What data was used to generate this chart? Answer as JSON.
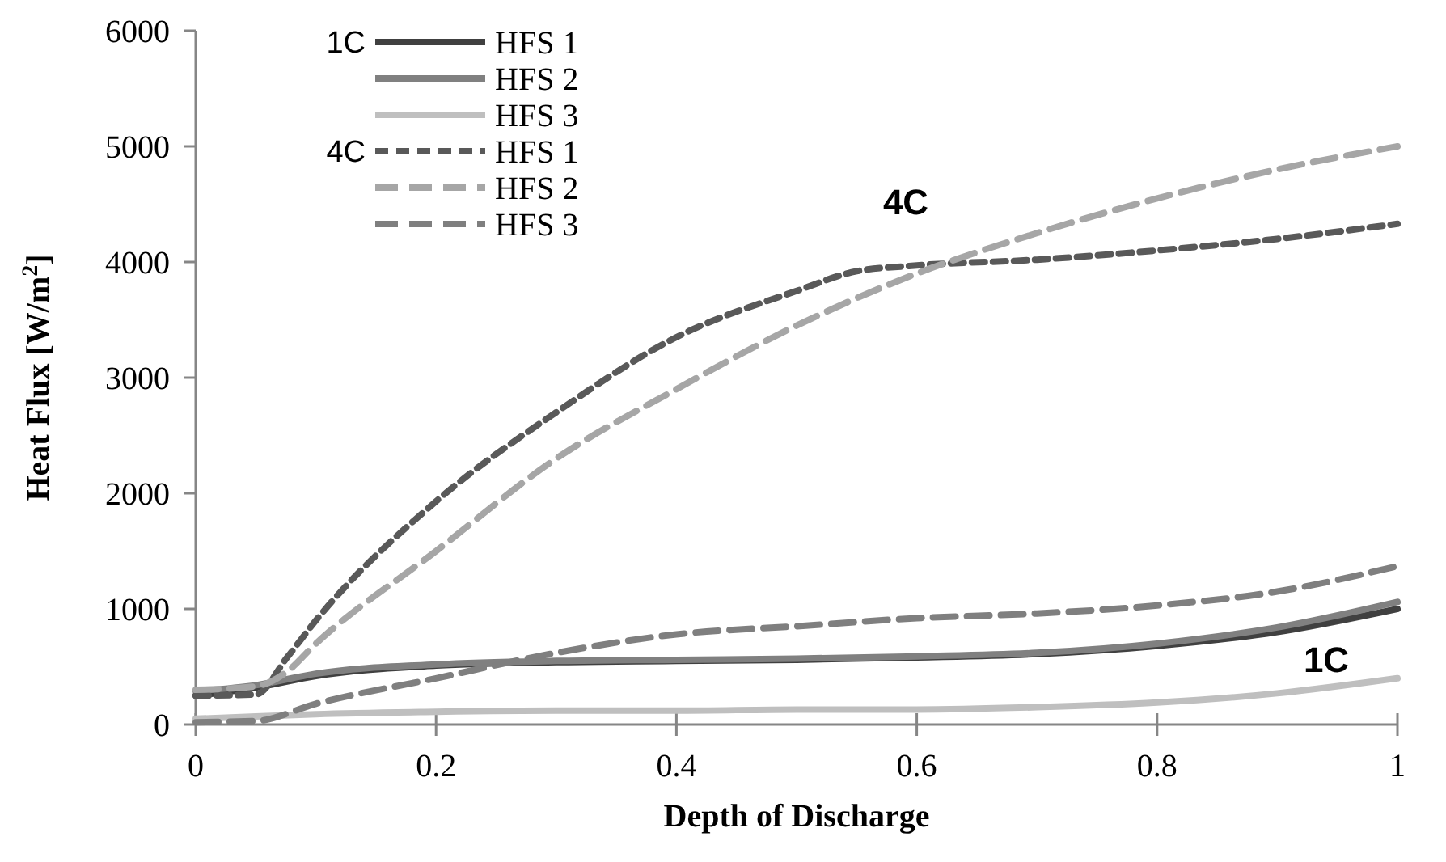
{
  "chart_data": {
    "type": "line",
    "xlabel": "Depth of Discharge",
    "ylabel": "Heat Flux [W/m$^{2}$]",
    "xlim": [
      0,
      1
    ],
    "ylim": [
      0,
      6000
    ],
    "xticks": [
      0,
      0.2,
      0.4,
      0.6,
      0.8,
      1
    ],
    "yticks": [
      0,
      1000,
      2000,
      3000,
      4000,
      5000,
      6000
    ],
    "grid": false,
    "legend": "top left",
    "x": [
      0,
      0.05,
      0.1,
      0.2,
      0.3,
      0.4,
      0.5,
      0.6,
      0.7,
      0.8,
      0.9,
      1
    ],
    "series": [
      {
        "name": "HFS 1",
        "color": "#404040",
        "line_style": "solid",
        "values": [
          250,
          320,
          420,
          510,
          540,
          550,
          560,
          580,
          610,
          680,
          800,
          1000
        ]
      },
      {
        "name": "HFS 2",
        "color": "#808080",
        "line_style": "solid",
        "values": [
          290,
          340,
          440,
          520,
          550,
          560,
          570,
          590,
          620,
          700,
          840,
          1060
        ]
      },
      {
        "name": "HFS 3",
        "color": "#bfbfbf",
        "line_style": "solid",
        "values": [
          50,
          70,
          90,
          110,
          120,
          120,
          130,
          130,
          150,
          190,
          270,
          400
        ]
      },
      {
        "name": "HFS 1",
        "color": "#595959",
        "line_style": "dotted",
        "x": [
          0,
          0.05,
          0.076,
          0.1,
          0.2,
          0.3,
          0.4,
          0.5,
          0.55,
          0.6,
          0.7,
          0.8,
          0.9,
          1
        ],
        "values": [
          250,
          260,
          580,
          900,
          1930,
          2700,
          3350,
          3750,
          3920,
          3970,
          4020,
          4100,
          4200,
          4330
        ]
      },
      {
        "name": "HFS 2",
        "color": "#a6a6a6",
        "line_style": "dashed",
        "x": [
          0,
          0.05,
          0.075,
          0.1,
          0.2,
          0.3,
          0.4,
          0.5,
          0.6,
          0.7,
          0.8,
          0.9,
          1
        ],
        "values": [
          300,
          330,
          450,
          700,
          1500,
          2300,
          2900,
          3450,
          3900,
          4250,
          4550,
          4800,
          5000
        ]
      },
      {
        "name": "HFS 3",
        "color": "#7f7f7f",
        "line_style": "dashed",
        "values": [
          20,
          30,
          180,
          400,
          620,
          780,
          850,
          920,
          960,
          1030,
          1150,
          1370
        ]
      }
    ],
    "annotations": [
      "1C",
      "4C",
      "4C",
      "1C"
    ]
  }
}
